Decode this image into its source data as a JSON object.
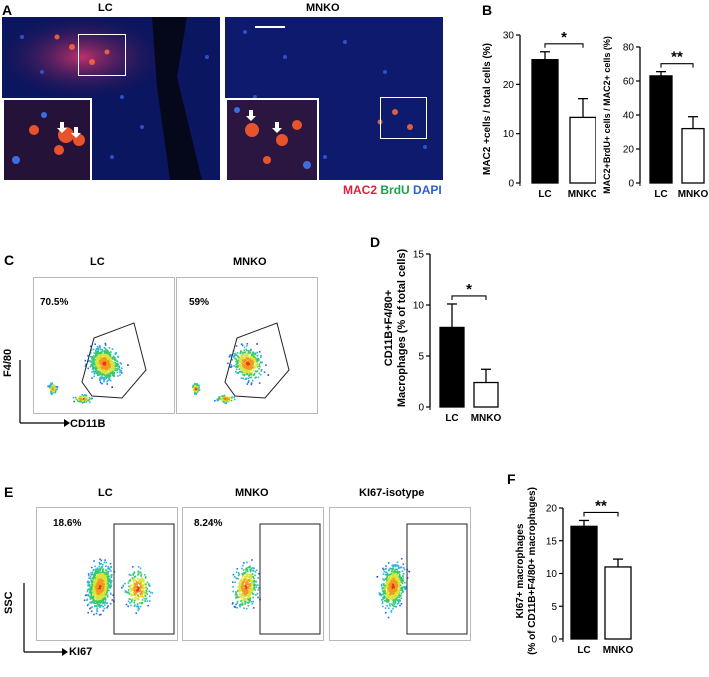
{
  "panels": {
    "A": "A",
    "B": "B",
    "C": "C",
    "D": "D",
    "E": "E",
    "F": "F"
  },
  "panelA": {
    "label_lc": "LC",
    "label_mnko": "MNKO",
    "stain": {
      "mac2": "MAC2",
      "brdu": "BrdU",
      "dapi": "DAPI",
      "mac2_color": "#e0203a",
      "brdu_color": "#1aa34a",
      "dapi_color": "#2f5fd6"
    }
  },
  "panelC": {
    "label_lc": "LC",
    "label_mnko": "MNKO",
    "pct_lc": "70.5%",
    "pct_mnko": "59%",
    "y_axis": "F4/80",
    "x_axis": "CD11B"
  },
  "panelE": {
    "label_lc": "LC",
    "label_mnko": "MNKO",
    "label_iso": "KI67-isotype",
    "pct_lc": "18.6%",
    "pct_mnko": "8.24%",
    "y_axis": "SSC",
    "x_axis": "KI67"
  },
  "chart_data": [
    {
      "id": "B1",
      "type": "bar",
      "categories": [
        "LC",
        "MNKO"
      ],
      "values": [
        25,
        13.3
      ],
      "errors": [
        1.6,
        3.8
      ],
      "ylabel": "MAC2 +cells / total cells (%)",
      "ylim": [
        0,
        30
      ],
      "yticks": [
        "0",
        "10",
        "20",
        "30"
      ],
      "sig": "*",
      "fills": [
        "#000000",
        "#ffffff"
      ]
    },
    {
      "id": "B2",
      "type": "bar",
      "categories": [
        "LC",
        "MNKO"
      ],
      "values": [
        63,
        32
      ],
      "errors": [
        2.5,
        7
      ],
      "ylabel": "MAC2+BrdU+ cells / MAC2+ cells (%)",
      "ylim": [
        0,
        80
      ],
      "yticks": [
        "0",
        "20",
        "40",
        "60",
        "80"
      ],
      "sig": "**",
      "fills": [
        "#000000",
        "#ffffff"
      ]
    },
    {
      "id": "D",
      "type": "bar",
      "categories": [
        "LC",
        "MNKO"
      ],
      "values": [
        7.8,
        2.4
      ],
      "errors": [
        2.3,
        1.3
      ],
      "ylabel_1": "CD11B+F4/80+",
      "ylabel_2": "Macrophages (% of total cells)",
      "ylim": [
        0,
        15
      ],
      "yticks": [
        "0",
        "5",
        "10",
        "15"
      ],
      "sig": "*",
      "fills": [
        "#000000",
        "#ffffff"
      ]
    },
    {
      "id": "F",
      "type": "bar",
      "categories": [
        "LC",
        "MNKO"
      ],
      "values": [
        17.2,
        11
      ],
      "errors": [
        0.9,
        1.2
      ],
      "ylabel_1": "KI67+ macrophages",
      "ylabel_2": "(% of CD11B+F4/80+ macrophages)",
      "ylim": [
        0,
        20
      ],
      "yticks": [
        "0",
        "5",
        "10",
        "15",
        "20"
      ],
      "sig": "**",
      "fills": [
        "#000000",
        "#ffffff"
      ]
    }
  ]
}
